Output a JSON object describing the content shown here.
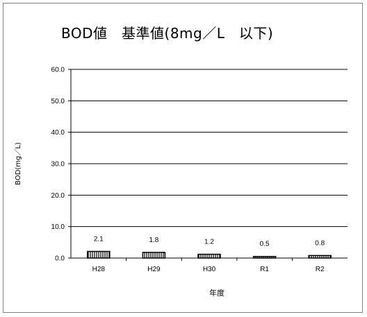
{
  "chart_data": {
    "type": "bar",
    "title": "BOD値　基準値(8mg／L　以下)",
    "xlabel": "年度",
    "ylabel": "BOD(mg／L)",
    "categories": [
      "H28",
      "H29",
      "H30",
      "R1",
      "R2"
    ],
    "values": [
      2.1,
      1.8,
      1.2,
      0.5,
      0.8
    ],
    "data_labels": [
      "2.1",
      "1.8",
      "1.2",
      "0.5",
      "0.8"
    ],
    "ylim": [
      0,
      60
    ],
    "yticks": [
      "0.0",
      "10.0",
      "20.0",
      "30.0",
      "40.0",
      "50.0",
      "60.0"
    ],
    "grid": true,
    "legend": "none",
    "colors": {
      "bar_fill": "#ffffff",
      "bar_stroke": "#000000",
      "bar_hatch": "#000000",
      "grid": "#000000"
    }
  }
}
